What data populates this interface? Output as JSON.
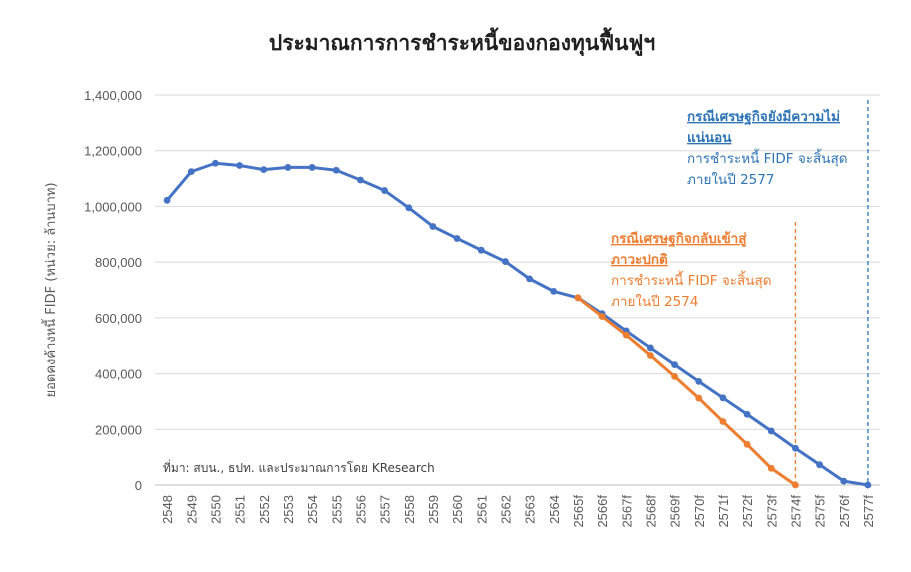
{
  "chart_data": {
    "type": "line",
    "title": "ประมาณการการชำระหนี้ของกองทุนฟื้นฟูฯ",
    "ylabel": "ยอดคงค้างหนี้ FIDF (หน่วย: ล้านบาท)",
    "xlabel": "",
    "ylim": [
      0,
      1400000
    ],
    "yticks": [
      0,
      200000,
      400000,
      600000,
      800000,
      1000000,
      1200000,
      1400000
    ],
    "ytick_labels": [
      "0",
      "200,000",
      "400,000",
      "600,000",
      "800,000",
      "1,000,000",
      "1,200,000",
      "1,400,000"
    ],
    "grid": true,
    "categories": [
      "2548",
      "2549",
      "2550",
      "2551",
      "2552",
      "2553",
      "2554",
      "2555",
      "2556",
      "2557",
      "2558",
      "2559",
      "2560",
      "2561",
      "2562",
      "2563",
      "2564",
      "2565f",
      "2566f",
      "2567f",
      "2568f",
      "2569f",
      "2570f",
      "2571f",
      "2572f",
      "2573f",
      "2574f",
      "2575f",
      "2576f",
      "2577f"
    ],
    "series": [
      {
        "name": "",
        "color": "#4472C4",
        "values": [
          1022000,
          1125000,
          1155000,
          1147000,
          1132000,
          1140000,
          1140000,
          1130000,
          1095000,
          1057000,
          995000,
          928000,
          885000,
          843000,
          802000,
          740000,
          695000,
          672000,
          615000,
          553000,
          492000,
          432000,
          372000,
          313000,
          254000,
          194000,
          132000,
          73000,
          14000,
          0
        ]
      },
      {
        "name": "",
        "color": "#ED7D31",
        "values": [
          null,
          null,
          null,
          null,
          null,
          null,
          null,
          null,
          null,
          null,
          null,
          null,
          null,
          null,
          null,
          null,
          null,
          672000,
          605000,
          538000,
          465000,
          390000,
          312000,
          228000,
          146000,
          60000,
          0,
          null,
          null,
          null
        ]
      }
    ],
    "annotations": [
      {
        "color": "#ED7D31",
        "heading_lines": [
          "กรณีเศรษฐกิจกลับเข้าสู่",
          "ภาวะปกติ"
        ],
        "body_lines": [
          "การชำระหนี้ FIDF จะสิ้นสุด",
          "ภายในปี 2574"
        ],
        "marker_category": "2574f"
      },
      {
        "color": "#2E75B6",
        "heading_lines": [
          "กรณีเศรษฐกิจยังมีความไม่",
          "แน่นอน"
        ],
        "body_lines": [
          "การชำระหนี้ FIDF จะสิ้นสุด",
          "ภายในปี 2577"
        ],
        "marker_category": "2577f"
      }
    ],
    "source_note": "ที่มา: สบน., ธปท. และประมาณการโดย KResearch"
  }
}
